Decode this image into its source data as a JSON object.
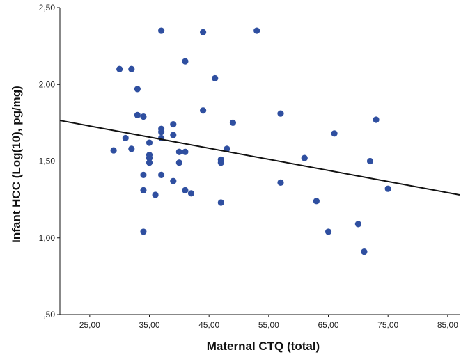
{
  "chart_data": {
    "type": "scatter",
    "title": "",
    "xlabel": "Maternal CTQ (total)",
    "ylabel": "Infant HCC (Log(10), pg/mg)",
    "xlim": [
      20,
      87
    ],
    "ylim": [
      0.5,
      2.5
    ],
    "x_ticks": [
      25,
      35,
      45,
      55,
      65,
      75,
      85
    ],
    "x_tick_labels": [
      "25,00",
      "35,00",
      "45,00",
      "55,00",
      "65,00",
      "75,00",
      "85,00"
    ],
    "y_ticks": [
      0.5,
      1.0,
      1.5,
      2.0,
      2.5
    ],
    "y_tick_labels": [
      ",50",
      "1,00",
      "1,50",
      "2,00",
      "2,50"
    ],
    "grid": false,
    "point_color": "#2f4fa0",
    "line_color": "#111111",
    "fit_line": {
      "x": [
        20,
        87
      ],
      "y": [
        1.765,
        1.28
      ]
    },
    "points": [
      {
        "x": 29,
        "y": 1.57
      },
      {
        "x": 30,
        "y": 2.1
      },
      {
        "x": 31,
        "y": 1.65
      },
      {
        "x": 32,
        "y": 2.1
      },
      {
        "x": 32,
        "y": 1.58
      },
      {
        "x": 33,
        "y": 1.97
      },
      {
        "x": 33,
        "y": 1.8
      },
      {
        "x": 34,
        "y": 1.79
      },
      {
        "x": 34,
        "y": 1.41
      },
      {
        "x": 34,
        "y": 1.31
      },
      {
        "x": 34,
        "y": 1.04
      },
      {
        "x": 35,
        "y": 1.62
      },
      {
        "x": 35,
        "y": 1.54
      },
      {
        "x": 35,
        "y": 1.52
      },
      {
        "x": 35,
        "y": 1.49
      },
      {
        "x": 36,
        "y": 1.28
      },
      {
        "x": 37,
        "y": 2.35
      },
      {
        "x": 37,
        "y": 1.71
      },
      {
        "x": 37,
        "y": 1.69
      },
      {
        "x": 37,
        "y": 1.65
      },
      {
        "x": 37,
        "y": 1.41
      },
      {
        "x": 39,
        "y": 1.74
      },
      {
        "x": 39,
        "y": 1.67
      },
      {
        "x": 39,
        "y": 1.37
      },
      {
        "x": 40,
        "y": 1.56
      },
      {
        "x": 40,
        "y": 1.49
      },
      {
        "x": 41,
        "y": 2.15
      },
      {
        "x": 41,
        "y": 1.56
      },
      {
        "x": 41,
        "y": 1.31
      },
      {
        "x": 42,
        "y": 1.29
      },
      {
        "x": 44,
        "y": 2.34
      },
      {
        "x": 44,
        "y": 1.83
      },
      {
        "x": 46,
        "y": 2.04
      },
      {
        "x": 47,
        "y": 1.51
      },
      {
        "x": 47,
        "y": 1.49
      },
      {
        "x": 47,
        "y": 1.23
      },
      {
        "x": 48,
        "y": 1.58
      },
      {
        "x": 49,
        "y": 1.75
      },
      {
        "x": 53,
        "y": 2.35
      },
      {
        "x": 57,
        "y": 1.81
      },
      {
        "x": 57,
        "y": 1.36
      },
      {
        "x": 61,
        "y": 1.52
      },
      {
        "x": 63,
        "y": 1.24
      },
      {
        "x": 65,
        "y": 1.04
      },
      {
        "x": 66,
        "y": 1.68
      },
      {
        "x": 70,
        "y": 1.09
      },
      {
        "x": 71,
        "y": 0.91
      },
      {
        "x": 72,
        "y": 1.5
      },
      {
        "x": 73,
        "y": 1.77
      },
      {
        "x": 75,
        "y": 1.32
      }
    ]
  }
}
